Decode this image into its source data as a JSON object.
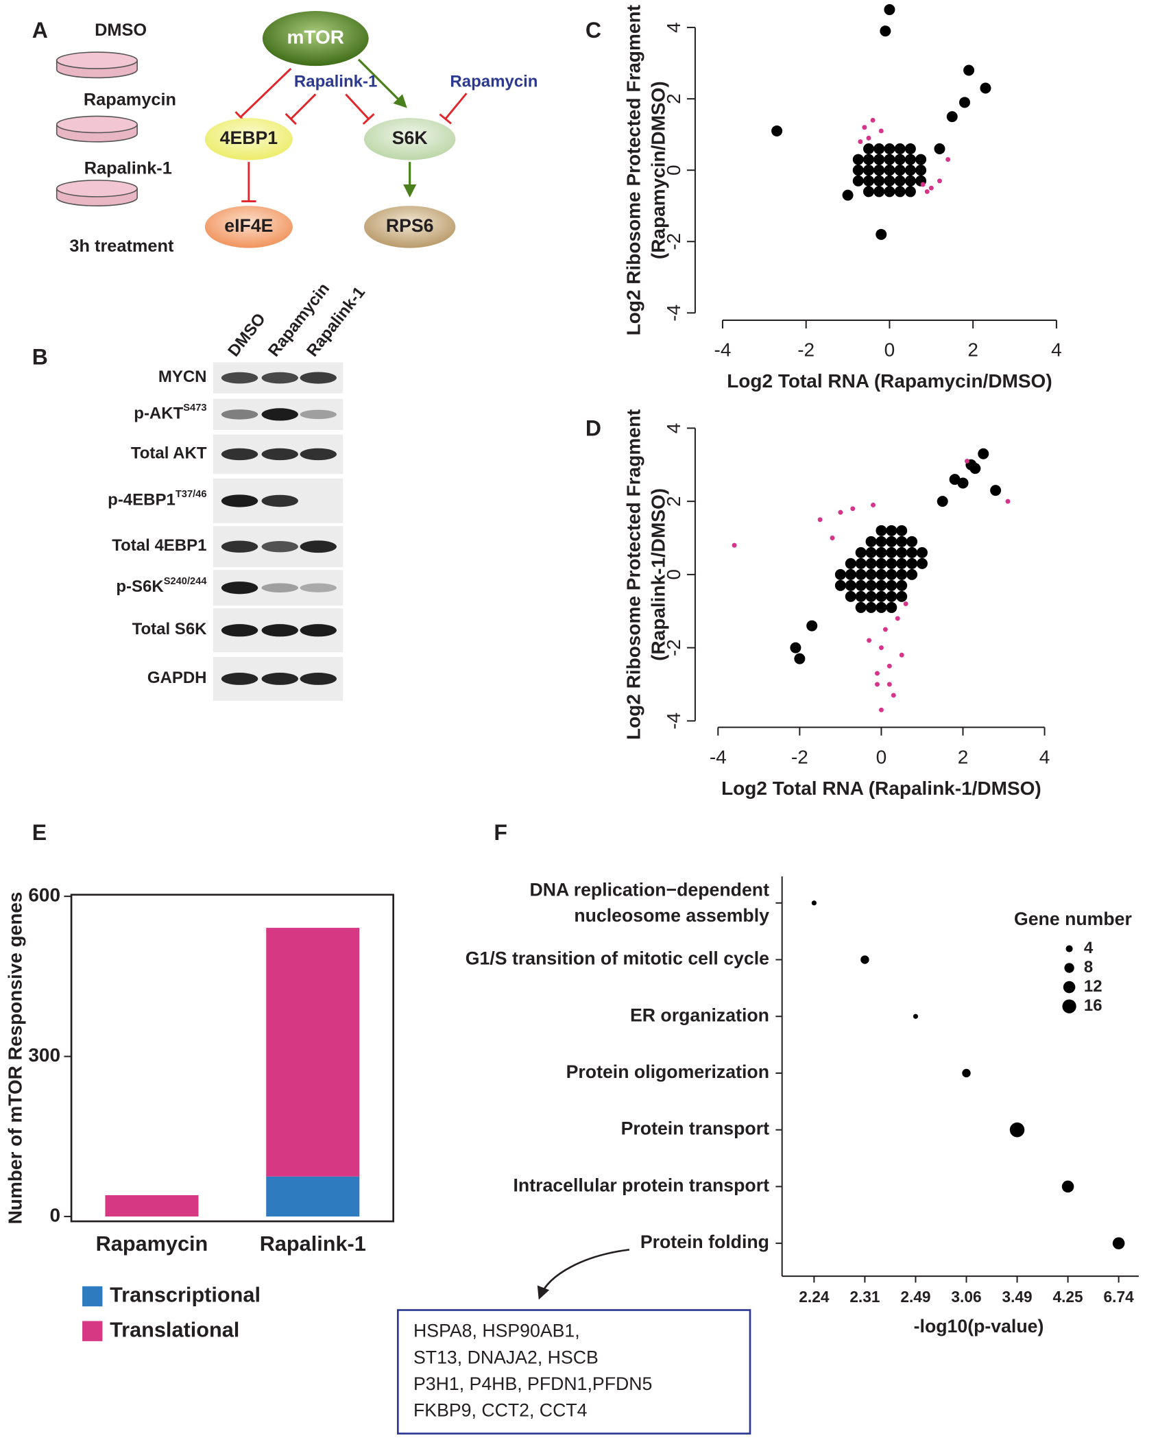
{
  "panel_labels": [
    "A",
    "B",
    "C",
    "D",
    "E",
    "F"
  ],
  "treatments": {
    "labels": [
      "DMSO",
      "Rapamycin",
      "Rapalink-1"
    ],
    "note": "3h treatment"
  },
  "pathway": {
    "nodes": [
      "mTOR",
      "4EBP1",
      "S6K",
      "eIF4E",
      "RPS6"
    ],
    "inhibitors": [
      "Rapalink-1",
      "Rapamycin"
    ]
  },
  "western_blot": {
    "lanes": [
      "DMSO",
      "Rapamycin",
      "Rapalink-1"
    ],
    "rows": [
      {
        "label": "MYCN"
      },
      {
        "label": "p-AKT",
        "sup": "S473"
      },
      {
        "label": "Total AKT"
      },
      {
        "label": "p-4EBP1",
        "sup": "T37/46"
      },
      {
        "label": "Total 4EBP1"
      },
      {
        "label": "p-S6K",
        "sup": "S240/244"
      },
      {
        "label": "Total S6K"
      },
      {
        "label": "GAPDH"
      }
    ]
  },
  "chart_data": [
    {
      "type": "scatter",
      "xlabel": "Log2 Total RNA (Rapamycin/DMSO)",
      "ylabel": [
        "Log2 Ribosome Protected Fragment",
        "(Rapamycin/DMSO)"
      ],
      "xlim": [
        -4,
        4
      ],
      "ylim": [
        -4,
        4
      ],
      "xticks": [
        -4,
        -2,
        0,
        2,
        4
      ],
      "yticks": [
        -4,
        -2,
        0,
        2,
        4
      ],
      "series": [
        {
          "color": "#000000",
          "x": [
            -0.5,
            -0.25,
            0,
            0.25,
            0.5,
            -0.75,
            -0.5,
            -0.25,
            0,
            0.25,
            0.5,
            0.75,
            -0.75,
            -0.5,
            -0.25,
            0,
            0.25,
            0.5,
            0.75,
            -0.75,
            -0.5,
            -0.25,
            0,
            0.25,
            0.5,
            0.75,
            -0.5,
            -0.25,
            0,
            0.25,
            0.5,
            0,
            -0.1,
            1.9,
            2.3,
            1.8,
            1.5,
            -2.7,
            -0.2,
            -1.0,
            1.2
          ],
          "values": [
            -0.6,
            -0.6,
            -0.6,
            -0.6,
            -0.6,
            -0.3,
            -0.3,
            -0.3,
            -0.3,
            -0.3,
            -0.3,
            -0.3,
            0,
            0,
            0,
            0,
            0,
            0,
            0,
            0.3,
            0.3,
            0.3,
            0.3,
            0.3,
            0.3,
            0.3,
            0.6,
            0.6,
            0.6,
            0.6,
            0.6,
            4.5,
            3.9,
            2.8,
            2.3,
            1.9,
            1.5,
            1.1,
            -1.8,
            -0.7,
            0.6
          ]
        },
        {
          "color": "#d6338a",
          "x": [
            -0.6,
            -0.4,
            -0.7,
            -0.2,
            0.8,
            1.0,
            1.2,
            0.9,
            1.4,
            -0.5
          ],
          "values": [
            1.2,
            1.4,
            0.8,
            1.1,
            -0.4,
            -0.5,
            -0.3,
            -0.6,
            0.3,
            0.9
          ]
        }
      ]
    },
    {
      "type": "scatter",
      "xlabel": "Log2 Total RNA (Rapalink-1/DMSO)",
      "ylabel": [
        "Log2 Ribosome Protected Fragment",
        "(Rapalink-1/DMSO)"
      ],
      "xlim": [
        -4,
        4
      ],
      "ylim": [
        -4,
        4
      ],
      "xticks": [
        -4,
        -2,
        0,
        2,
        4
      ],
      "yticks": [
        -4,
        -2,
        0,
        2,
        4
      ],
      "series": [
        {
          "color": "#000000",
          "x": [
            -0.5,
            -0.25,
            0,
            0.25,
            -0.75,
            -0.5,
            -0.25,
            0,
            0.25,
            0.5,
            -1,
            -0.75,
            -0.5,
            -0.25,
            0,
            0.25,
            0.5,
            -1,
            -0.75,
            -0.5,
            -0.25,
            0,
            0.25,
            0.5,
            0.75,
            -0.75,
            -0.5,
            -0.25,
            0,
            0.25,
            0.5,
            0.75,
            1,
            -0.5,
            -0.25,
            0,
            0.25,
            0.5,
            0.75,
            1,
            -0.25,
            0,
            0.25,
            0.5,
            0.75,
            0,
            0.25,
            0.5,
            2.5,
            2.2,
            2.3,
            1.8,
            2.0,
            2.8,
            -2.1,
            -2.0,
            -1.7,
            1.5
          ],
          "values": [
            -0.9,
            -0.9,
            -0.9,
            -0.9,
            -0.6,
            -0.6,
            -0.6,
            -0.6,
            -0.6,
            -0.6,
            -0.3,
            -0.3,
            -0.3,
            -0.3,
            -0.3,
            -0.3,
            -0.3,
            0,
            0,
            0,
            0,
            0,
            0,
            0,
            0,
            0.3,
            0.3,
            0.3,
            0.3,
            0.3,
            0.3,
            0.3,
            0.3,
            0.6,
            0.6,
            0.6,
            0.6,
            0.6,
            0.6,
            0.6,
            0.9,
            0.9,
            0.9,
            0.9,
            0.9,
            1.2,
            1.2,
            1.2,
            3.3,
            3.0,
            2.9,
            2.6,
            2.5,
            2.3,
            -2.0,
            -2.3,
            -1.4,
            2.0
          ]
        },
        {
          "color": "#d6338a",
          "x": [
            -3.6,
            3.1,
            2.1,
            -1.5,
            -1.0,
            -0.7,
            -0.2,
            0.1,
            0.0,
            0.2,
            -0.1,
            0.3,
            0.0,
            0.4,
            -0.3,
            0.5,
            0.6,
            -0.1,
            0.2,
            -1.2
          ],
          "values": [
            0.8,
            2.0,
            3.1,
            1.5,
            1.7,
            1.8,
            1.9,
            -1.5,
            -2.0,
            -2.5,
            -3.0,
            -3.3,
            -3.7,
            -1.2,
            -1.8,
            -2.2,
            -0.8,
            -2.7,
            -3.0,
            1.0
          ]
        }
      ]
    },
    {
      "type": "bar",
      "stacked": true,
      "ylabel": "Number of mTOR Responsive genes",
      "categories": [
        "Rapamycin",
        "Rapalink-1"
      ],
      "ylim": [
        -9,
        603
      ],
      "yticks": [
        0,
        300,
        600
      ],
      "legend": "below",
      "series": [
        {
          "name": "Transcriptional",
          "color": "#2f7bbf",
          "values": [
            0,
            75
          ]
        },
        {
          "name": "Translational",
          "color": "#d63884",
          "values": [
            40,
            466
          ]
        }
      ]
    },
    {
      "type": "bubble",
      "xlabel": "-log10(p-value)",
      "categories": [
        [
          "DNA replication−dependent",
          "nucleosome assembly"
        ],
        "G1/S transition of mitotic cell cycle",
        "ER organization",
        "Protein oligomerization",
        "Protein transport",
        "Intracellular protein transport",
        "Protein folding"
      ],
      "x": [
        "2.24",
        "2.31",
        "2.49",
        "3.06",
        "3.49",
        "4.25",
        "6.74"
      ],
      "sizes": [
        2,
        6,
        2,
        6,
        18,
        12,
        12
      ],
      "color": "#000000",
      "size_legend": {
        "title": "Gene number",
        "values": [
          4,
          8,
          12,
          16
        ]
      },
      "annotation": [
        "HSPA8, HSP90AB1,",
        "ST13, DNAJA2, HSCB",
        "P3H1, P4HB, PFDN1,PFDN5",
        "FKBP9, CCT2, CCT4"
      ]
    }
  ]
}
